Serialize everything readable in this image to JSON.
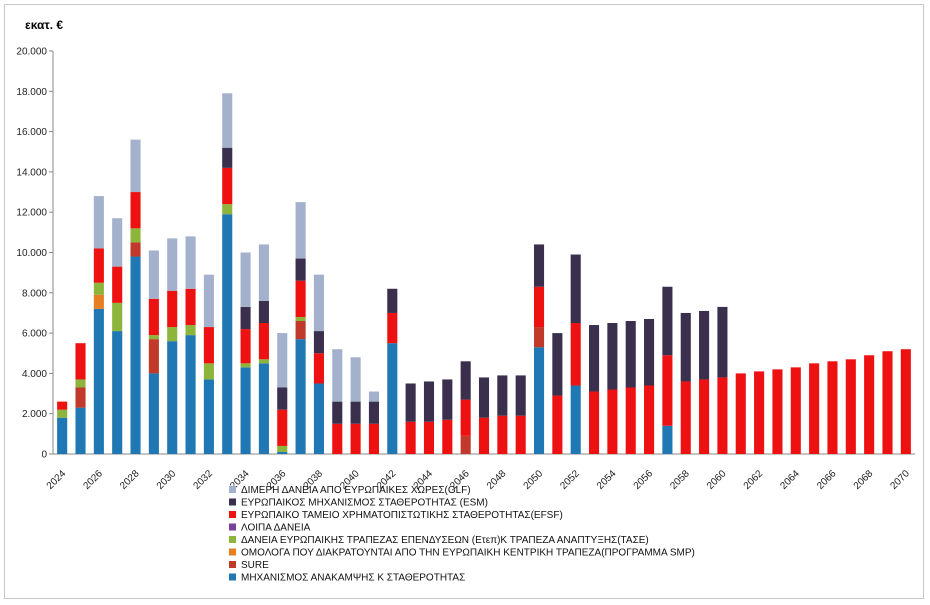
{
  "chart_data": {
    "type": "bar",
    "stacked": true,
    "title": "",
    "unit_label": "εκατ. €",
    "xlabel": "",
    "ylabel": "",
    "ylim": [
      0,
      20000
    ],
    "y_ticks": [
      "0",
      "2.000",
      "4.000",
      "6.000",
      "8.000",
      "10.000",
      "12.000",
      "14.000",
      "16.000",
      "18.000",
      "20.000"
    ],
    "grid": false,
    "legend_position": "bottom",
    "categories": [
      "2024",
      "2025",
      "2026",
      "2027",
      "2028",
      "2029",
      "2030",
      "2031",
      "2032",
      "2033",
      "2034",
      "2035",
      "2036",
      "2037",
      "2038",
      "2039",
      "2040",
      "2041",
      "2042",
      "2043",
      "2044",
      "2045",
      "2046",
      "2047",
      "2048",
      "2049",
      "2050",
      "2051",
      "2052",
      "2053",
      "2054",
      "2055",
      "2056",
      "2057",
      "2058",
      "2059",
      "2060",
      "2061",
      "2062",
      "2063",
      "2064",
      "2065",
      "2066",
      "2067",
      "2068",
      "2069",
      "2070"
    ],
    "x_tick_labels": [
      "2024",
      "2026",
      "2028",
      "2030",
      "2032",
      "2034",
      "2036",
      "2038",
      "2040",
      "2042",
      "2044",
      "2046",
      "2048",
      "2050",
      "2052",
      "2054",
      "2056",
      "2058",
      "2060",
      "2062",
      "2064",
      "2066",
      "2068",
      "2070"
    ],
    "series": [
      {
        "name": "ΜΗΧΑΝΙΣΜΟΣ ΑΝΑΚΑΜΨΗΣ Κ ΣΤΑΘΕΡΟΤΗΤΑΣ",
        "color": "#1f77b4",
        "values": [
          1800,
          2300,
          7200,
          6100,
          9800,
          4000,
          5600,
          5900,
          3700,
          11900,
          4300,
          4500,
          100,
          5700,
          3500,
          0,
          0,
          0,
          5500,
          0,
          0,
          0,
          0,
          0,
          0,
          0,
          5300,
          0,
          3400,
          0,
          0,
          0,
          0,
          1400,
          0,
          0,
          0,
          0,
          0,
          0,
          0,
          0,
          0,
          0,
          0,
          0,
          0
        ]
      },
      {
        "name": "SURE",
        "color": "#c0392b",
        "values": [
          0,
          1000,
          0,
          0,
          700,
          1700,
          0,
          0,
          0,
          0,
          0,
          0,
          0,
          900,
          0,
          0,
          0,
          0,
          0,
          0,
          0,
          0,
          900,
          0,
          0,
          0,
          1000,
          0,
          0,
          0,
          0,
          0,
          0,
          0,
          0,
          0,
          0,
          0,
          0,
          0,
          0,
          0,
          0,
          0,
          0,
          0,
          0
        ]
      },
      {
        "name": "ΟΜΟΛΟΓΑ ΠΟΥ ΔΙΑΚΡΑΤΟΥΝΤΑΙ ΑΠΟ ΤΗΝ ΕΥΡΩΠΑΙΚΗ ΚΕΝΤΡΙΚΗ ΤΡΑΠΕΖΑ(ΠΡΟΓΡΑΜΜΑ SMP)",
        "color": "#e67e22",
        "values": [
          0,
          0,
          700,
          0,
          0,
          0,
          0,
          0,
          0,
          0,
          0,
          0,
          0,
          0,
          0,
          0,
          0,
          0,
          0,
          0,
          0,
          0,
          0,
          0,
          0,
          0,
          0,
          0,
          0,
          0,
          0,
          0,
          0,
          0,
          0,
          0,
          0,
          0,
          0,
          0,
          0,
          0,
          0,
          0,
          0,
          0,
          0
        ]
      },
      {
        "name": "ΔΑΝΕΙΑ ΕΥΡΩΠΑΙΚΗΣ ΤΡΑΠΕΖΑΣ ΕΠΕΝΔΥΣΕΩΝ (Ετεπ)Κ ΤΡΑΠΕΖΑ ΑΝΑΠΤΥΞΗΣ(ΤΑΣΕ)",
        "color": "#8db53c",
        "values": [
          400,
          400,
          600,
          1400,
          700,
          200,
          700,
          500,
          800,
          500,
          200,
          200,
          300,
          200,
          0,
          0,
          0,
          0,
          0,
          0,
          0,
          0,
          0,
          0,
          0,
          0,
          0,
          0,
          0,
          0,
          0,
          0,
          0,
          0,
          0,
          0,
          0,
          0,
          0,
          0,
          0,
          0,
          0,
          0,
          0,
          0,
          0
        ]
      },
      {
        "name": "ΛΟΙΠΑ ΔΑΝΕΙΑ",
        "color": "#7b3f9e",
        "values": [
          0,
          0,
          0,
          0,
          0,
          0,
          0,
          0,
          0,
          0,
          0,
          0,
          0,
          0,
          0,
          0,
          0,
          0,
          0,
          0,
          0,
          0,
          0,
          0,
          0,
          0,
          0,
          0,
          0,
          0,
          0,
          0,
          0,
          0,
          0,
          0,
          0,
          0,
          0,
          0,
          0,
          0,
          0,
          0,
          0,
          0,
          0
        ]
      },
      {
        "name": "ΕΥΡΩΠΑΙΚΟ ΤΑΜΕΙΟ ΧΡΗΜΑΤΟΠΙΣΤΩΤΙΚΗΣ ΣΤΑΘΕΡΟΤΗΤΑΣ(EFSF)",
        "color": "#ee1111",
        "values": [
          400,
          1800,
          1700,
          1800,
          1800,
          1800,
          1800,
          1800,
          1800,
          1800,
          1700,
          1800,
          1800,
          1800,
          1500,
          1500,
          1500,
          1500,
          1500,
          1600,
          1600,
          1700,
          1800,
          1800,
          1900,
          1900,
          2000,
          2900,
          3100,
          3100,
          3200,
          3300,
          3400,
          3500,
          3600,
          3700,
          3800,
          4000,
          4100,
          4200,
          4300,
          4500,
          4600,
          4700,
          4900,
          5100,
          5200
        ]
      },
      {
        "name": "ΕΥΡΩΠΑΙΚΟΣ ΜΗΧΑΝΙΣΜΟΣ ΣΤΑΘΕΡΟΤΗΤΑΣ (ESM)",
        "color": "#3b2f4e",
        "values": [
          0,
          0,
          0,
          0,
          0,
          0,
          0,
          0,
          0,
          1000,
          1100,
          1100,
          1100,
          1100,
          1100,
          1100,
          1100,
          1100,
          1200,
          1900,
          2000,
          2000,
          1900,
          2000,
          2000,
          2000,
          2100,
          3100,
          3400,
          3300,
          3300,
          3300,
          3300,
          3400,
          3400,
          3400,
          3500,
          0,
          0,
          0,
          0,
          0,
          0,
          0,
          0,
          0,
          0
        ]
      },
      {
        "name": "ΔΙΜΕΡΗ ΔΑΝΕΙΑ ΑΠΟ ΕΥΡΩΠΑΙΚΕΣ ΧΩΡΕΣ(GLF)",
        "color": "#a3b1cc",
        "values": [
          0,
          0,
          2600,
          2400,
          2600,
          2400,
          2600,
          2600,
          2600,
          2700,
          2700,
          2800,
          2700,
          2800,
          2800,
          2600,
          2200,
          500,
          0,
          0,
          0,
          0,
          0,
          0,
          0,
          0,
          0,
          0,
          0,
          0,
          0,
          0,
          0,
          0,
          0,
          0,
          0,
          0,
          0,
          0,
          0,
          0,
          0,
          0,
          0,
          0,
          0
        ]
      }
    ]
  }
}
